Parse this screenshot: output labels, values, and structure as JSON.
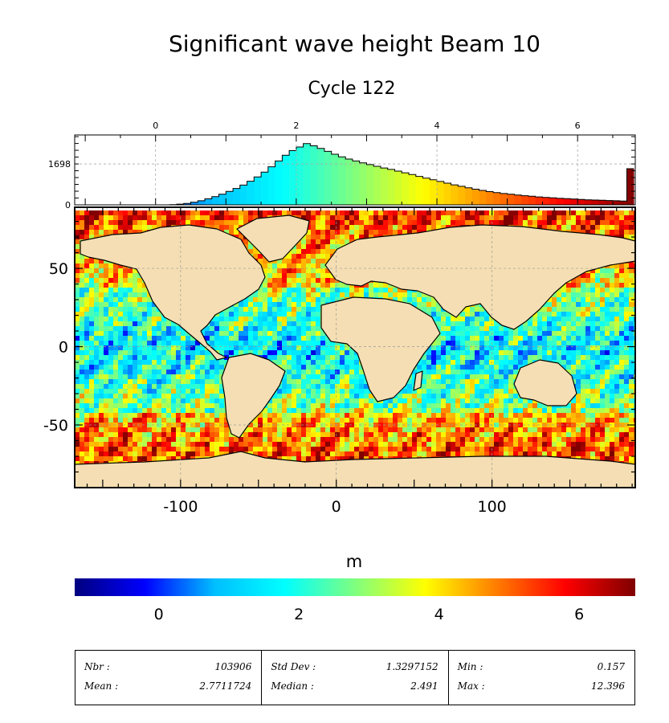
{
  "chart_data": [
    {
      "type": "bar",
      "name": "histogram",
      "x_ticks": [
        0,
        2,
        4,
        6
      ],
      "y_ticks": [
        0,
        1698
      ],
      "xlim": [
        -1.15,
        6.82
      ],
      "ylim": [
        0,
        2900
      ],
      "bin_width": 0.1,
      "bins": [
        [
          0.2,
          10
        ],
        [
          0.3,
          30
        ],
        [
          0.4,
          60
        ],
        [
          0.5,
          110
        ],
        [
          0.6,
          170
        ],
        [
          0.7,
          250
        ],
        [
          0.8,
          340
        ],
        [
          0.9,
          440
        ],
        [
          1.0,
          560
        ],
        [
          1.1,
          680
        ],
        [
          1.2,
          820
        ],
        [
          1.3,
          980
        ],
        [
          1.4,
          1160
        ],
        [
          1.5,
          1360
        ],
        [
          1.6,
          1580
        ],
        [
          1.7,
          1820
        ],
        [
          1.8,
          2060
        ],
        [
          1.9,
          2250
        ],
        [
          2.0,
          2400
        ],
        [
          2.1,
          2540
        ],
        [
          2.2,
          2450
        ],
        [
          2.3,
          2340
        ],
        [
          2.4,
          2220
        ],
        [
          2.5,
          2100
        ],
        [
          2.6,
          1990
        ],
        [
          2.7,
          1900
        ],
        [
          2.8,
          1820
        ],
        [
          2.9,
          1740
        ],
        [
          3.0,
          1670
        ],
        [
          3.1,
          1600
        ],
        [
          3.2,
          1530
        ],
        [
          3.3,
          1470
        ],
        [
          3.4,
          1400
        ],
        [
          3.5,
          1330
        ],
        [
          3.6,
          1260
        ],
        [
          3.7,
          1180
        ],
        [
          3.8,
          1110
        ],
        [
          3.9,
          1040
        ],
        [
          4.0,
          970
        ],
        [
          4.1,
          900
        ],
        [
          4.2,
          830
        ],
        [
          4.3,
          770
        ],
        [
          4.4,
          710
        ],
        [
          4.5,
          650
        ],
        [
          4.6,
          600
        ],
        [
          4.7,
          550
        ],
        [
          4.8,
          510
        ],
        [
          4.9,
          470
        ],
        [
          5.0,
          440
        ],
        [
          5.1,
          410
        ],
        [
          5.2,
          380
        ],
        [
          5.3,
          355
        ],
        [
          5.4,
          330
        ],
        [
          5.5,
          310
        ],
        [
          5.6,
          290
        ],
        [
          5.7,
          270
        ],
        [
          5.8,
          255
        ],
        [
          5.9,
          240
        ],
        [
          6.0,
          225
        ],
        [
          6.1,
          210
        ],
        [
          6.2,
          200
        ],
        [
          6.3,
          190
        ],
        [
          6.4,
          180
        ],
        [
          6.5,
          170
        ],
        [
          6.6,
          160
        ],
        [
          6.7,
          1500
        ]
      ]
    },
    {
      "type": "heatmap",
      "name": "map",
      "x_ticks": [
        -100,
        0,
        100
      ],
      "y_ticks": [
        50,
        0,
        -50
      ],
      "xlim": [
        -168,
        192
      ],
      "ylim": [
        -90,
        89
      ]
    }
  ],
  "title": "Significant wave height Beam 10",
  "subtitle": "Cycle 122",
  "colorbar": {
    "label": "m",
    "ticks": [
      0,
      2,
      4,
      6
    ],
    "range": [
      -1.2,
      6.8
    ],
    "colors": [
      "#00007f",
      "#0000ff",
      "#00bfff",
      "#00ffff",
      "#7fff7f",
      "#ffff00",
      "#ff7f00",
      "#ff0000",
      "#7f0000"
    ]
  },
  "map_colors": {
    "land": "#f5deb3",
    "ocean_base": "#22c7ee",
    "high": "#cc1a00",
    "mid": "#e6e600"
  },
  "stats": {
    "nbr_label": "Nbr :",
    "nbr_value": "103906",
    "mean_label": "Mean :",
    "mean_value": "2.7711724",
    "std_label": "Std Dev :",
    "std_value": "1.3297152",
    "median_label": "Median :",
    "median_value": "2.491",
    "min_label": "Min :",
    "min_value": "0.157",
    "max_label": "Max :",
    "max_value": "12.396"
  }
}
